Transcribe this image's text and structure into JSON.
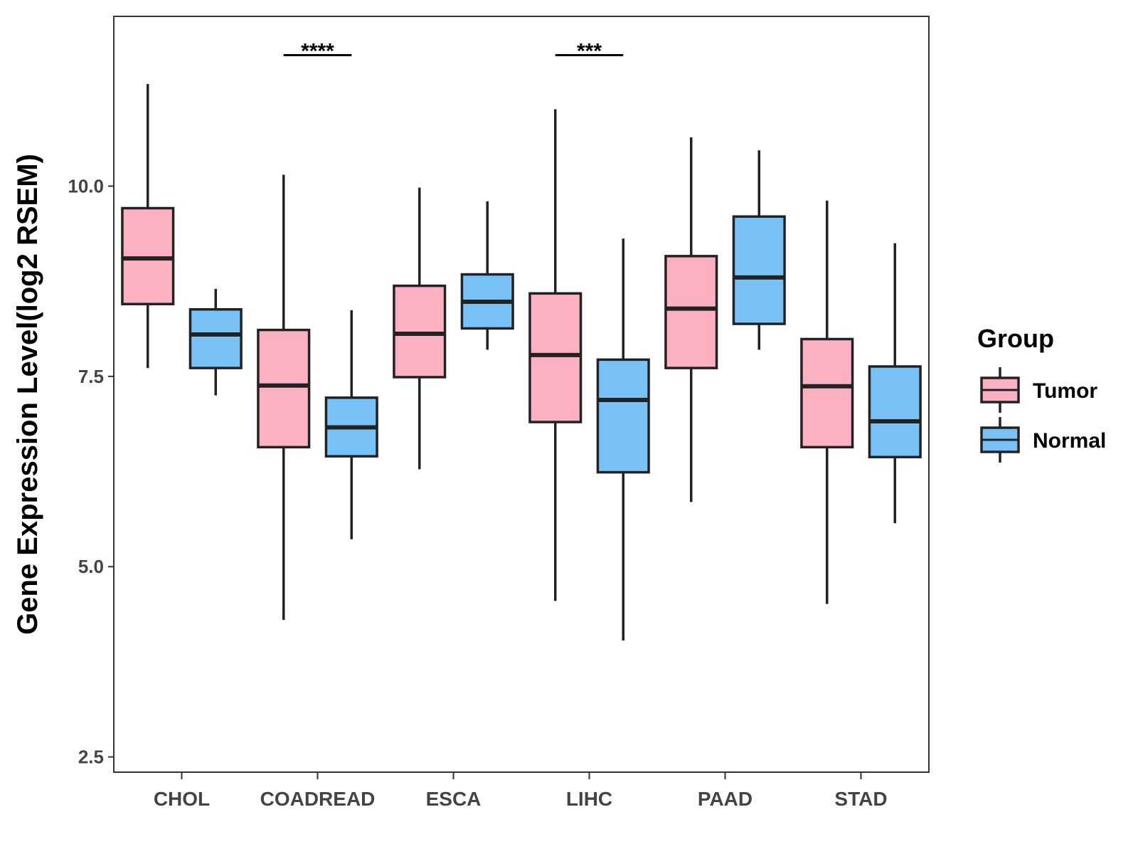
{
  "chart_data": {
    "type": "boxplot",
    "title": "",
    "xlabel": "",
    "ylabel": "Gene Expression Level(log2 RSEM)",
    "ylim": [
      2.3,
      12.23
    ],
    "yticks": [
      2.5,
      5.0,
      7.5,
      10.0
    ],
    "ytick_labels": [
      "2.5",
      "5.0",
      "7.5",
      "10.0"
    ],
    "categories": [
      "CHOL",
      "COADREAD",
      "ESCA",
      "LIHC",
      "PAAD",
      "STAD"
    ],
    "legend": {
      "title": "Group",
      "position": "right",
      "entries": [
        {
          "name": "Tumor",
          "color": "#fcb1c3"
        },
        {
          "name": "Normal",
          "color": "#78c2f8"
        }
      ]
    },
    "series": [
      {
        "name": "Tumor",
        "color": "#fcb1c3",
        "boxes": [
          {
            "whisker_low": 7.61,
            "q1": 8.45,
            "median": 9.05,
            "q3": 9.71,
            "whisker_high": 11.34
          },
          {
            "whisker_low": 4.3,
            "q1": 6.57,
            "median": 7.38,
            "q3": 8.11,
            "whisker_high": 10.15
          },
          {
            "whisker_low": 6.28,
            "q1": 7.49,
            "median": 8.06,
            "q3": 8.69,
            "whisker_high": 9.98
          },
          {
            "whisker_low": 4.55,
            "q1": 6.9,
            "median": 7.78,
            "q3": 8.59,
            "whisker_high": 11.01
          },
          {
            "whisker_low": 5.85,
            "q1": 7.61,
            "median": 8.39,
            "q3": 9.08,
            "whisker_high": 10.64
          },
          {
            "whisker_low": 4.51,
            "q1": 6.57,
            "median": 7.37,
            "q3": 7.99,
            "whisker_high": 9.81
          }
        ]
      },
      {
        "name": "Normal",
        "color": "#78c2f8",
        "boxes": [
          {
            "whisker_low": 7.25,
            "q1": 7.61,
            "median": 8.05,
            "q3": 8.38,
            "whisker_high": 8.65
          },
          {
            "whisker_low": 5.36,
            "q1": 6.45,
            "median": 6.83,
            "q3": 7.22,
            "whisker_high": 8.37
          },
          {
            "whisker_low": 7.85,
            "q1": 8.13,
            "median": 8.48,
            "q3": 8.84,
            "whisker_high": 9.8
          },
          {
            "whisker_low": 4.03,
            "q1": 6.24,
            "median": 7.19,
            "q3": 7.72,
            "whisker_high": 9.31
          },
          {
            "whisker_low": 7.85,
            "q1": 8.19,
            "median": 8.8,
            "q3": 9.6,
            "whisker_high": 10.47
          },
          {
            "whisker_low": 5.57,
            "q1": 6.44,
            "median": 6.91,
            "q3": 7.63,
            "whisker_high": 9.25
          }
        ]
      }
    ],
    "annotations": [
      {
        "category": "COADREAD",
        "label": "****",
        "y": 11.72
      },
      {
        "category": "LIHC",
        "label": "***",
        "y": 11.72
      }
    ]
  }
}
